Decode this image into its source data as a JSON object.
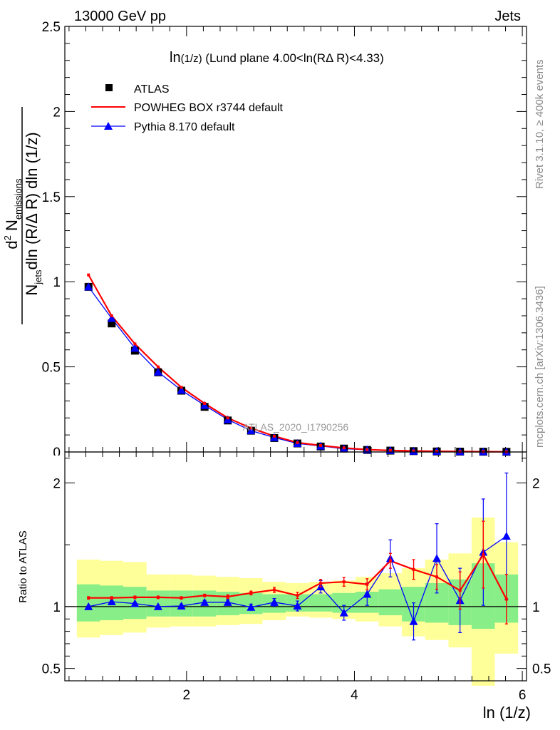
{
  "header": {
    "left": "13000 GeV pp",
    "right": "Jets"
  },
  "side_text": {
    "rivet": "Rivet 3.1.10, ≥ 400k events",
    "mcplots": "mcplots.cern.ch [arXiv:1306.3436]"
  },
  "plot_title": {
    "main": "ln",
    "sub": "(1/z)",
    "rest": " (Lund plane 4.00<ln(RΔ R)<4.33)"
  },
  "watermark": "ATLAS_2020_I1790256",
  "y_axis_label": {
    "one": "1",
    "njets": "N",
    "njets_sub": "jets",
    "dln": "dln (R/Δ R) dln (1/z)",
    "d2": "d",
    "d2_sup": "2",
    "nem": " N",
    "nem_sub": "emissions"
  },
  "ratio_y_label": "Ratio to ATLAS",
  "x_axis_label": "ln (1/z)",
  "colors": {
    "atlas": "#000000",
    "powheg": "#ff0000",
    "pythia": "#0000ff",
    "band_outer": "#ffff99",
    "band_inner": "#88ee88"
  },
  "chart_data": {
    "type": "line",
    "xlabel": "ln (1/z)",
    "xlim": [
      0.55,
      6.05
    ],
    "x_ticks": [
      "2",
      "4",
      "6"
    ],
    "main": {
      "ylim": [
        0,
        2.5
      ],
      "y_ticks": [
        "0.5",
        "1",
        "1.5",
        "2",
        "2.5"
      ],
      "y_tick_zero_partial": "0",
      "legend_position": "top-left",
      "bin_edges": [
        0.693,
        0.97,
        1.246,
        1.523,
        1.8,
        2.076,
        2.353,
        2.63,
        2.906,
        3.183,
        3.46,
        3.736,
        4.013,
        4.29,
        4.566,
        4.843,
        5.12,
        5.396,
        5.673,
        5.95
      ],
      "x": [
        0.832,
        1.108,
        1.385,
        1.661,
        1.938,
        2.215,
        2.491,
        2.768,
        3.045,
        3.321,
        3.598,
        3.875,
        4.151,
        4.428,
        4.705,
        4.981,
        5.258,
        5.535,
        5.811
      ],
      "series": [
        {
          "name": "ATLAS",
          "values": [
            0.97,
            0.755,
            0.595,
            0.468,
            0.36,
            0.265,
            0.185,
            0.125,
            0.082,
            0.05,
            0.032,
            0.02,
            0.012,
            0.008,
            0.005,
            0.003,
            0.002,
            0.0015,
            0.001
          ]
        },
        {
          "name": "POWHEG BOX r3744 default",
          "values": [
            1.04,
            0.8,
            0.635,
            0.5,
            0.38,
            0.285,
            0.2,
            0.14,
            0.093,
            0.055,
            0.038,
            0.024,
            0.014,
            0.009,
            0.006,
            0.004,
            0.0025,
            0.0018,
            0.0011
          ]
        },
        {
          "name": "Pythia 8.170 default",
          "values": [
            0.97,
            0.785,
            0.61,
            0.47,
            0.363,
            0.274,
            0.19,
            0.125,
            0.085,
            0.05,
            0.035,
            0.019,
            0.013,
            0.009,
            0.0045,
            0.004,
            0.0022,
            0.0018,
            0.0015
          ]
        }
      ]
    },
    "ratio": {
      "ylabel": "Ratio to ATLAS",
      "ylim": [
        0.4,
        2.25
      ],
      "y_ticks": [
        "0.5",
        "1",
        "2"
      ],
      "bands": {
        "outer_lo": [
          0.75,
          0.77,
          0.79,
          0.83,
          0.84,
          0.84,
          0.85,
          0.86,
          0.89,
          0.92,
          0.91,
          0.9,
          0.88,
          0.84,
          0.76,
          0.73,
          0.67,
          0.36,
          0.62
        ],
        "outer_hi": [
          1.38,
          1.37,
          1.36,
          1.26,
          1.26,
          1.25,
          1.24,
          1.23,
          1.2,
          1.19,
          1.2,
          1.21,
          1.24,
          1.27,
          1.31,
          1.38,
          1.43,
          1.72,
          1.52
        ],
        "inner_lo": [
          0.88,
          0.89,
          0.9,
          0.92,
          0.92,
          0.92,
          0.93,
          0.94,
          0.95,
          0.96,
          0.96,
          0.95,
          0.95,
          0.93,
          0.88,
          0.87,
          0.85,
          0.82,
          0.87
        ],
        "inner_hi": [
          1.18,
          1.17,
          1.16,
          1.13,
          1.13,
          1.13,
          1.12,
          1.11,
          1.1,
          1.1,
          1.1,
          1.11,
          1.12,
          1.14,
          1.16,
          1.19,
          1.22,
          1.35,
          1.26
        ]
      },
      "series": [
        {
          "name": "POWHEG BOX r3744 default",
          "values": [
            1.07,
            1.07,
            1.075,
            1.075,
            1.07,
            1.09,
            1.08,
            1.11,
            1.135,
            1.09,
            1.19,
            1.2,
            1.18,
            1.37,
            1.3,
            1.24,
            1.13,
            1.42,
            1.06
          ],
          "err": [
            0.01,
            0.01,
            0.01,
            0.01,
            0.01,
            0.01,
            0.015,
            0.015,
            0.02,
            0.025,
            0.03,
            0.035,
            0.045,
            0.06,
            0.08,
            0.1,
            0.15,
            0.27,
            0.2
          ]
        },
        {
          "name": "Pythia 8.170 default",
          "values": [
            1.0,
            1.04,
            1.025,
            1.0,
            1.005,
            1.035,
            1.035,
            0.995,
            1.035,
            1.005,
            1.16,
            0.95,
            1.1,
            1.39,
            0.88,
            1.39,
            1.05,
            1.44,
            1.57
          ],
          "err": [
            0.01,
            0.01,
            0.01,
            0.01,
            0.015,
            0.015,
            0.02,
            0.025,
            0.03,
            0.04,
            0.05,
            0.06,
            0.09,
            0.15,
            0.15,
            0.28,
            0.26,
            0.43,
            0.51
          ]
        }
      ]
    }
  }
}
